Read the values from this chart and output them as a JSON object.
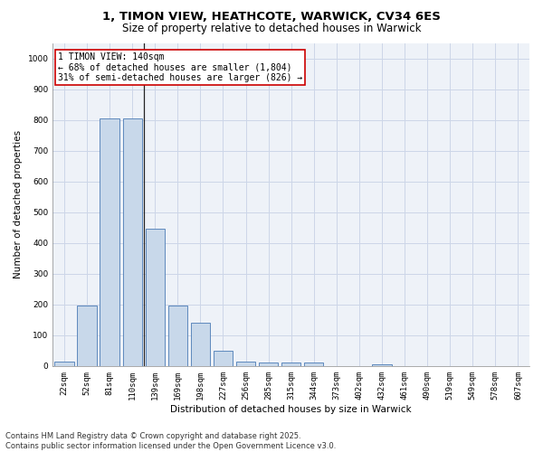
{
  "title_line1": "1, TIMON VIEW, HEATHCOTE, WARWICK, CV34 6ES",
  "title_line2": "Size of property relative to detached houses in Warwick",
  "xlabel": "Distribution of detached houses by size in Warwick",
  "ylabel": "Number of detached properties",
  "categories": [
    "22sqm",
    "52sqm",
    "81sqm",
    "110sqm",
    "139sqm",
    "169sqm",
    "198sqm",
    "227sqm",
    "256sqm",
    "285sqm",
    "315sqm",
    "344sqm",
    "373sqm",
    "402sqm",
    "432sqm",
    "461sqm",
    "490sqm",
    "519sqm",
    "549sqm",
    "578sqm",
    "607sqm"
  ],
  "values": [
    15,
    195,
    805,
    805,
    447,
    197,
    140,
    50,
    15,
    10,
    10,
    10,
    0,
    0,
    5,
    0,
    0,
    0,
    0,
    0,
    0
  ],
  "bar_color": "#c8d8ea",
  "bar_edge_color": "#4a7ab5",
  "annotation_title": "1 TIMON VIEW: 140sqm",
  "annotation_line1": "← 68% of detached houses are smaller (1,804)",
  "annotation_line2": "31% of semi-detached houses are larger (826) →",
  "annotation_box_color": "#ffffff",
  "annotation_box_edge": "#cc0000",
  "ylim": [
    0,
    1050
  ],
  "yticks": [
    0,
    100,
    200,
    300,
    400,
    500,
    600,
    700,
    800,
    900,
    1000
  ],
  "grid_color": "#ccd6e8",
  "background_color": "#eef2f8",
  "footer_line1": "Contains HM Land Registry data © Crown copyright and database right 2025.",
  "footer_line2": "Contains public sector information licensed under the Open Government Licence v3.0.",
  "title_fontsize": 9.5,
  "subtitle_fontsize": 8.5,
  "axis_label_fontsize": 7.5,
  "tick_fontsize": 6.5,
  "annotation_fontsize": 7,
  "footer_fontsize": 6
}
